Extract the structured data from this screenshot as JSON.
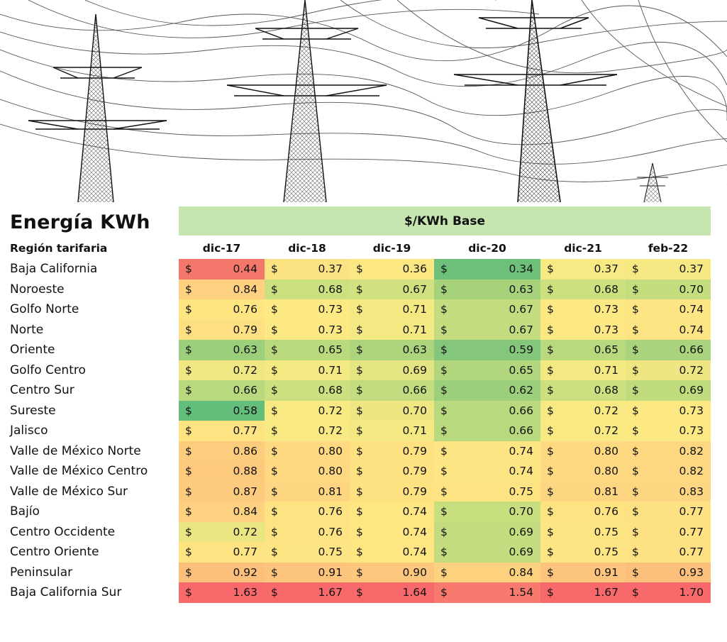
{
  "title": "Energía KWh",
  "band_label": "$/KWh Base",
  "region_header": "Región tarifaria",
  "currency_symbol": "$",
  "chart_data": {
    "type": "table",
    "columns": [
      "dic-17",
      "dic-18",
      "dic-19",
      "dic-20",
      "dic-21",
      "feb-22"
    ],
    "rows": [
      {
        "region": "Baja California",
        "values": [
          "0.44",
          "0.37",
          "0.36",
          "0.34",
          "0.37",
          "0.37"
        ],
        "colors": [
          "#f4776c",
          "#fbe383",
          "#fbe883",
          "#6dbf79",
          "#f7e983",
          "#f6e883"
        ]
      },
      {
        "region": "Noroeste",
        "values": [
          "0.84",
          "0.68",
          "0.67",
          "0.63",
          "0.68",
          "0.70"
        ],
        "colors": [
          "#fdd17f",
          "#cde080",
          "#d2e17f",
          "#a6d27b",
          "#cbe07f",
          "#c4dd7e"
        ]
      },
      {
        "region": "Golfo Norte",
        "values": [
          "0.76",
          "0.73",
          "0.71",
          "0.67",
          "0.73",
          "0.74"
        ],
        "colors": [
          "#fee582",
          "#fde983",
          "#f4e883",
          "#c3dc7f",
          "#fde983",
          "#fee583"
        ]
      },
      {
        "region": "Norte",
        "values": [
          "0.79",
          "0.73",
          "0.71",
          "0.67",
          "0.73",
          "0.74"
        ],
        "colors": [
          "#fedf82",
          "#fde983",
          "#f4e883",
          "#c3dc7f",
          "#fde983",
          "#fee583"
        ]
      },
      {
        "region": "Oriente",
        "values": [
          "0.63",
          "0.65",
          "0.63",
          "0.59",
          "0.65",
          "0.66"
        ],
        "colors": [
          "#9ccf7c",
          "#b9d97d",
          "#acd47c",
          "#84c67b",
          "#b9d97e",
          "#a9d37c"
        ]
      },
      {
        "region": "Golfo Centro",
        "values": [
          "0.72",
          "0.71",
          "0.69",
          "0.65",
          "0.71",
          "0.72"
        ],
        "colors": [
          "#eee783",
          "#f4e883",
          "#e4e482",
          "#b1d67d",
          "#f4e883",
          "#eee683"
        ]
      },
      {
        "region": "Centro Sur",
        "values": [
          "0.66",
          "0.68",
          "0.66",
          "0.62",
          "0.68",
          "0.69"
        ],
        "colors": [
          "#b8d97e",
          "#cde080",
          "#c3dc7f",
          "#9ccf7c",
          "#cde080",
          "#bfdb7e"
        ]
      },
      {
        "region": "Sureste",
        "values": [
          "0.58",
          "0.72",
          "0.70",
          "0.66",
          "0.72",
          "0.73"
        ],
        "colors": [
          "#63be7b",
          "#f8e983",
          "#ede683",
          "#b9d97e",
          "#f8e983",
          "#fde983"
        ]
      },
      {
        "region": "Jalisco",
        "values": [
          "0.77",
          "0.72",
          "0.71",
          "0.66",
          "0.72",
          "0.73"
        ],
        "colors": [
          "#fee382",
          "#f8e983",
          "#f4e883",
          "#b9d97e",
          "#f8e983",
          "#fde983"
        ]
      },
      {
        "region": "Valle de México Norte",
        "values": [
          "0.86",
          "0.80",
          "0.79",
          "0.74",
          "0.80",
          "0.82"
        ],
        "colors": [
          "#fdcd7e",
          "#fed981",
          "#fee282",
          "#fee583",
          "#fed981",
          "#fdd881"
        ]
      },
      {
        "region": "Valle de México Centro",
        "values": [
          "0.88",
          "0.80",
          "0.79",
          "0.74",
          "0.80",
          "0.82"
        ],
        "colors": [
          "#fdc97d",
          "#fed981",
          "#fee282",
          "#fee583",
          "#fed981",
          "#fdd881"
        ]
      },
      {
        "region": "Valle de México Sur",
        "values": [
          "0.87",
          "0.81",
          "0.79",
          "0.75",
          "0.81",
          "0.83"
        ],
        "colors": [
          "#fdcb7e",
          "#fed681",
          "#fee282",
          "#fee383",
          "#fed681",
          "#fdd681"
        ]
      },
      {
        "region": "Bajío",
        "values": [
          "0.84",
          "0.76",
          "0.74",
          "0.70",
          "0.76",
          "0.77"
        ],
        "colors": [
          "#fdd17f",
          "#fee383",
          "#fee683",
          "#c8df7f",
          "#fee383",
          "#fee182"
        ]
      },
      {
        "region": "Centro Occidente",
        "values": [
          "0.72",
          "0.76",
          "0.74",
          "0.69",
          "0.75",
          "0.77"
        ],
        "colors": [
          "#e8e582",
          "#fee383",
          "#fee683",
          "#c3dc7f",
          "#fee583",
          "#fee182"
        ]
      },
      {
        "region": "Centro Oriente",
        "values": [
          "0.77",
          "0.75",
          "0.74",
          "0.69",
          "0.75",
          "0.77"
        ],
        "colors": [
          "#fee382",
          "#fee583",
          "#fee683",
          "#c3dc7f",
          "#fee583",
          "#fee182"
        ]
      },
      {
        "region": "Peninsular",
        "values": [
          "0.92",
          "0.91",
          "0.90",
          "0.84",
          "0.91",
          "0.93"
        ],
        "colors": [
          "#fcc07c",
          "#fdc47d",
          "#fcc67d",
          "#fdd27f",
          "#fdc47d",
          "#fcc07c"
        ]
      },
      {
        "region": "Baja California Sur",
        "values": [
          "1.63",
          "1.67",
          "1.64",
          "1.54",
          "1.67",
          "1.70"
        ],
        "colors": [
          "#f8696b",
          "#f8696b",
          "#f8696b",
          "#f8796e",
          "#f8696b",
          "#f8696b"
        ]
      }
    ]
  }
}
